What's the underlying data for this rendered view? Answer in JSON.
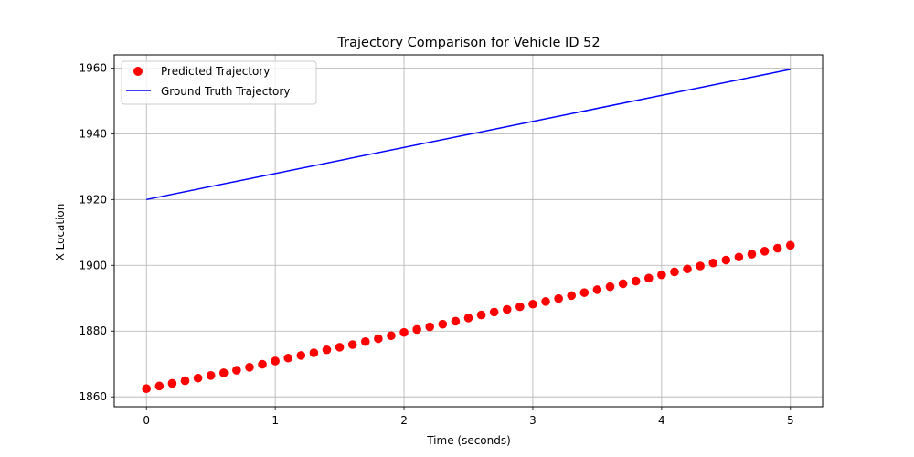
{
  "chart_data": {
    "type": "scatter",
    "title": "Trajectory Comparison for Vehicle ID 52",
    "xlabel": "Time (seconds)",
    "ylabel": "X Location",
    "xlim": [
      -0.25,
      5.25
    ],
    "ylim": [
      1857,
      1964
    ],
    "xticks": [
      0,
      1,
      2,
      3,
      4,
      5
    ],
    "yticks": [
      1860,
      1880,
      1900,
      1920,
      1940,
      1960
    ],
    "grid": true,
    "legend_position": "upper-left",
    "series": [
      {
        "name": "Predicted Trajectory",
        "kind": "scatter",
        "color": "#ff0000",
        "x": [
          0.0,
          0.1,
          0.2,
          0.3,
          0.4,
          0.5,
          0.6,
          0.7,
          0.8,
          0.9,
          1.0,
          1.1,
          1.2,
          1.3,
          1.4,
          1.5,
          1.6,
          1.7,
          1.8,
          1.9,
          2.0,
          2.1,
          2.2,
          2.3,
          2.4,
          2.5,
          2.6,
          2.7,
          2.8,
          2.9,
          3.0,
          3.1,
          3.2,
          3.3,
          3.4,
          3.5,
          3.6,
          3.7,
          3.8,
          3.9,
          4.0,
          4.1,
          4.2,
          4.3,
          4.4,
          4.5,
          4.6,
          4.7,
          4.8,
          4.9,
          5.0
        ],
        "y": [
          1862.5,
          1863.3,
          1864.1,
          1864.9,
          1865.7,
          1866.5,
          1867.3,
          1868.1,
          1869.0,
          1869.9,
          1870.9,
          1871.8,
          1872.6,
          1873.4,
          1874.3,
          1875.1,
          1875.9,
          1876.8,
          1877.7,
          1878.6,
          1879.6,
          1880.5,
          1881.3,
          1882.1,
          1883.0,
          1884.0,
          1884.9,
          1885.8,
          1886.6,
          1887.4,
          1888.2,
          1889.0,
          1889.9,
          1890.8,
          1891.7,
          1892.6,
          1893.5,
          1894.4,
          1895.2,
          1896.1,
          1897.1,
          1898.0,
          1898.9,
          1899.8,
          1900.7,
          1901.6,
          1902.5,
          1903.4,
          1904.3,
          1905.2,
          1906.1
        ]
      },
      {
        "name": "Ground Truth Trajectory",
        "kind": "line",
        "color": "#0000ff",
        "x": [
          0,
          5
        ],
        "y": [
          1920,
          1959.6
        ]
      }
    ]
  }
}
